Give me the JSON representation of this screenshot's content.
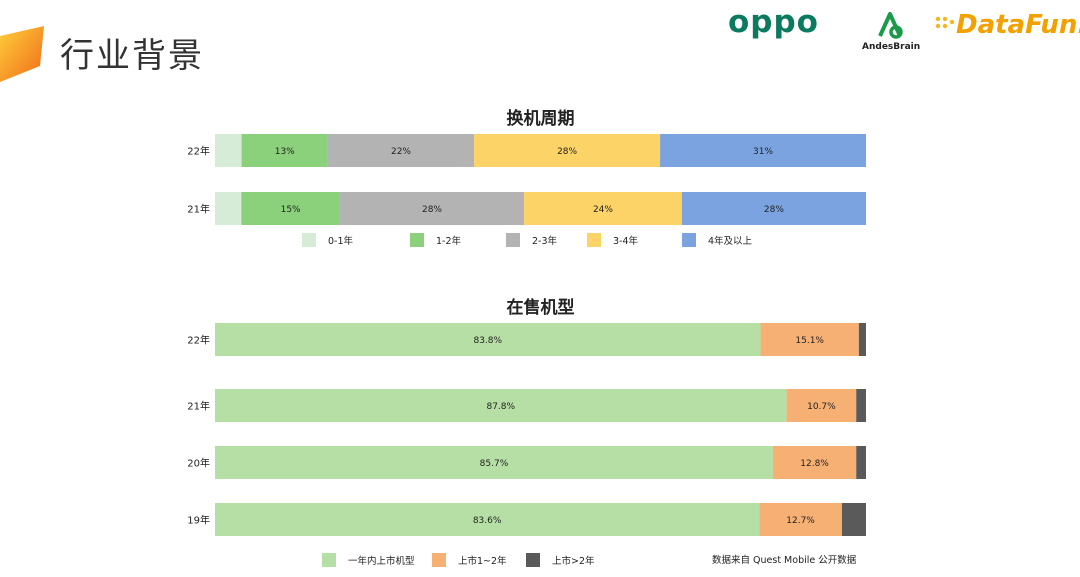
{
  "header": {
    "title": "行业背景",
    "logos": {
      "oppo": "oppo",
      "andesbrain": "AndesBrain",
      "datafun": "DataFun."
    }
  },
  "chart_data": [
    {
      "type": "bar",
      "orientation": "horizontal",
      "stacked": "percent",
      "title": "换机周期",
      "categories": [
        "22年",
        "21年"
      ],
      "series": [
        {
          "name": "0-1年",
          "color": "#d6ecd6",
          "values": [
            4,
            4
          ],
          "labels": [
            "",
            ""
          ]
        },
        {
          "name": "1-2年",
          "color": "#8bd17b",
          "values": [
            13,
            15
          ],
          "labels": [
            "13%",
            "15%"
          ]
        },
        {
          "name": "2-3年",
          "color": "#b3b3b3",
          "values": [
            22,
            28
          ],
          "labels": [
            "22%",
            "28%"
          ]
        },
        {
          "name": "3-4年",
          "color": "#fcd366",
          "values": [
            28,
            24
          ],
          "labels": [
            "28%",
            "24%"
          ]
        },
        {
          "name": "4年及以上",
          "color": "#7aa3e0",
          "values": [
            31,
            28
          ],
          "labels": [
            "31%",
            "28%"
          ]
        }
      ],
      "legend": "bottom"
    },
    {
      "type": "bar",
      "orientation": "horizontal",
      "stacked": "percent",
      "title": "在售机型",
      "categories": [
        "22年",
        "21年",
        "20年",
        "19年"
      ],
      "series": [
        {
          "name": "一年内上市机型",
          "color": "#b6dfa5",
          "values": [
            83.8,
            87.8,
            85.7,
            83.6
          ],
          "labels": [
            "83.8%",
            "87.8%",
            "85.7%",
            "83.6%"
          ]
        },
        {
          "name": "上市1~2年",
          "color": "#f7b074",
          "values": [
            15.1,
            10.7,
            12.8,
            12.7
          ],
          "labels": [
            "15.1%",
            "10.7%",
            "12.8%",
            "12.7%"
          ]
        },
        {
          "name": "上市>2年",
          "color": "#5a5a5a",
          "values": [
            1.1,
            1.5,
            1.5,
            3.7
          ],
          "labels": [
            "",
            "",
            "",
            ""
          ]
        }
      ],
      "legend": "bottom"
    }
  ],
  "footer": {
    "source": "数据来自 Quest Mobile 公开数据"
  }
}
